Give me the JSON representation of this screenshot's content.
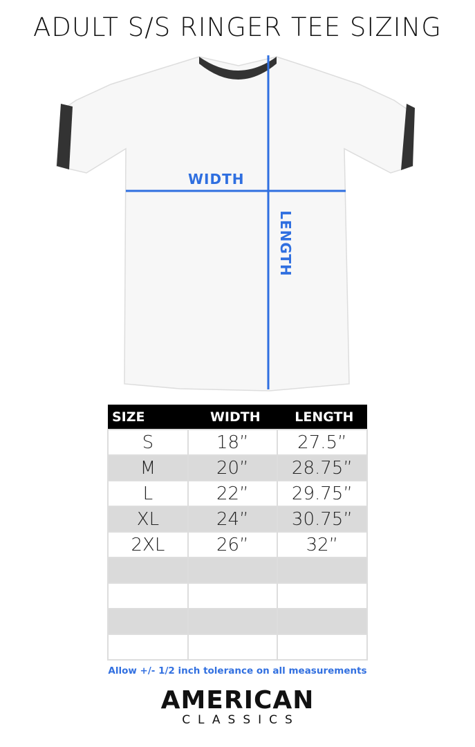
{
  "title": "ADULT S/S RINGER TEE SIZING",
  "diagram": {
    "width_label": "WIDTH",
    "length_label": "LENGTH",
    "accent_color": "#2f6fe0",
    "ringer_color": "#333333"
  },
  "table": {
    "headers": [
      "SIZE",
      "WIDTH",
      "LENGTH"
    ],
    "rows": [
      [
        "S",
        "18”",
        "27.5”"
      ],
      [
        "M",
        "20”",
        "28.75”"
      ],
      [
        "L",
        "22”",
        "29.75”"
      ],
      [
        "XL",
        "24”",
        "30.75”"
      ],
      [
        "2XL",
        "26”",
        "32”"
      ],
      [
        "",
        "",
        ""
      ],
      [
        "",
        "",
        ""
      ],
      [
        "",
        "",
        ""
      ],
      [
        "",
        "",
        ""
      ]
    ]
  },
  "note": "Allow +/- 1/2 inch tolerance on all measurements",
  "logo": {
    "line1": "AMERICAN",
    "line2": "CLASSICS"
  }
}
